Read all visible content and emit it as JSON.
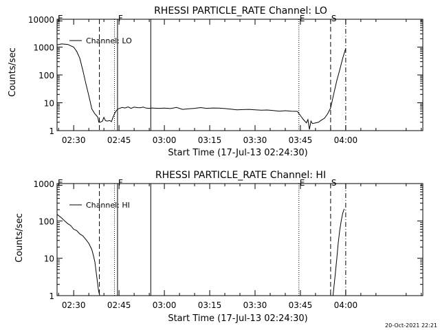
{
  "footer_timestamp": "20-Oct-2021 22:21",
  "chart_data": [
    {
      "type": "line",
      "title": "RHESSI PARTICLE_RATE Channel: LO",
      "xlabel": "Start Time (17-Jul-13 02:24:30)",
      "ylabel": "Counts/sec",
      "y_scale": "log",
      "ylim": [
        1,
        10000
      ],
      "yticks": [
        1,
        10,
        100,
        1000,
        10000
      ],
      "ytick_labels": [
        "1",
        "10",
        "100",
        "1000",
        "10000"
      ],
      "xlim_min": [
        -5.5,
        115.5
      ],
      "xtick_labels": [
        "02:30",
        "02:45",
        "03:00",
        "03:15",
        "03:30",
        "03:45",
        "04:00"
      ],
      "xtick_min": [
        0,
        15,
        30,
        45,
        60,
        75,
        90
      ],
      "legend": {
        "label": "Channel: LO",
        "position": "top-left"
      },
      "markers": [
        {
          "label": "E",
          "t": -5.5,
          "style": "solid"
        },
        {
          "label": "",
          "t": 8.5,
          "style": "dashed"
        },
        {
          "label": "",
          "t": 13.5,
          "style": "dotted"
        },
        {
          "label": "F",
          "t": 14.5,
          "style": "solid"
        },
        {
          "label": "",
          "t": 25.5,
          "style": "solid"
        },
        {
          "label": "E",
          "t": 74.5,
          "style": "dotted"
        },
        {
          "label": "S",
          "t": 85.0,
          "style": "dashed"
        },
        {
          "label": "",
          "t": 90.0,
          "style": "dashdot"
        }
      ],
      "series": [
        {
          "name": "Channel: LO",
          "x": [
            -5.5,
            -4,
            -2,
            0,
            1,
            2,
            3,
            4,
            5,
            6,
            7,
            7.5,
            8,
            8.3,
            8.8,
            9.5,
            10,
            10.5,
            11,
            12,
            12.5,
            13,
            13.5,
            14,
            14.5,
            15,
            16,
            17,
            18,
            19,
            20,
            21,
            22,
            23,
            24,
            25,
            26,
            28,
            30,
            32,
            34,
            36,
            38,
            40,
            42,
            44,
            46,
            48,
            50,
            52,
            54,
            56,
            58,
            60,
            62,
            64,
            66,
            68,
            70,
            72,
            74,
            75,
            76,
            77,
            77.5,
            78,
            78.5,
            79,
            80,
            81,
            82,
            83,
            84,
            85,
            86,
            87,
            88,
            89,
            90
          ],
          "y": [
            1200,
            1300,
            1250,
            1000,
            700,
            400,
            150,
            50,
            18,
            6,
            4,
            3.5,
            3,
            2,
            2,
            2.2,
            3,
            2.3,
            2.2,
            2.3,
            2.1,
            3,
            4,
            5,
            5.8,
            6.2,
            6.8,
            6.5,
            7.1,
            6.3,
            7,
            6.7,
            6.6,
            7,
            6.4,
            6.3,
            6.5,
            6.3,
            6.4,
            6.2,
            6.8,
            5.8,
            6.1,
            6.3,
            6.7,
            6.3,
            6.5,
            6.4,
            6.2,
            5.9,
            5.6,
            5.7,
            5.8,
            5.6,
            5.4,
            5.5,
            5.3,
            5.0,
            5.2,
            5.0,
            4.9,
            3.5,
            2.5,
            1.9,
            2.5,
            1.1,
            2.2,
            1.8,
            1.9,
            2,
            2.4,
            2.8,
            4,
            6.5,
            20,
            60,
            150,
            400,
            900
          ]
        }
      ]
    },
    {
      "type": "line",
      "title": "RHESSI PARTICLE_RATE Channel: HI",
      "xlabel": "Start Time (17-Jul-13 02:24:30)",
      "ylabel": "Counts/sec",
      "y_scale": "log",
      "ylim": [
        1,
        1000
      ],
      "yticks": [
        1,
        10,
        100,
        1000
      ],
      "ytick_labels": [
        "1",
        "10",
        "100",
        "1000"
      ],
      "xlim_min": [
        -5.5,
        115.5
      ],
      "xtick_labels": [
        "02:30",
        "02:45",
        "03:00",
        "03:15",
        "03:30",
        "03:45",
        "04:00"
      ],
      "xtick_min": [
        0,
        15,
        30,
        45,
        60,
        75,
        90
      ],
      "legend": {
        "label": "Channel: HI",
        "position": "top-left"
      },
      "markers": [
        {
          "label": "E",
          "t": -5.5,
          "style": "solid"
        },
        {
          "label": "",
          "t": 8.5,
          "style": "dashed"
        },
        {
          "label": "",
          "t": 13.5,
          "style": "dotted"
        },
        {
          "label": "F",
          "t": 14.5,
          "style": "solid"
        },
        {
          "label": "",
          "t": 25.5,
          "style": "solid"
        },
        {
          "label": "E",
          "t": 74.5,
          "style": "dotted"
        },
        {
          "label": "S",
          "t": 85.0,
          "style": "dashed"
        },
        {
          "label": "",
          "t": 90.0,
          "style": "dashdot"
        }
      ],
      "series": [
        {
          "name": "Channel: HI",
          "x": [
            -5.5,
            -4,
            -3,
            -2,
            -1,
            0,
            1,
            2,
            3,
            4,
            5,
            6,
            6.5,
            7,
            7.4,
            7.8,
            8.2,
            8.6,
            85.8,
            86.5,
            87,
            87.5,
            88,
            88.5,
            89,
            89.5
          ],
          "y": [
            150,
            120,
            100,
            85,
            75,
            60,
            55,
            45,
            40,
            32,
            25,
            17,
            12,
            8,
            4.5,
            2.5,
            1.4,
            1.0,
            1.0,
            3.5,
            9,
            25,
            55,
            100,
            160,
            210
          ]
        }
      ]
    }
  ]
}
